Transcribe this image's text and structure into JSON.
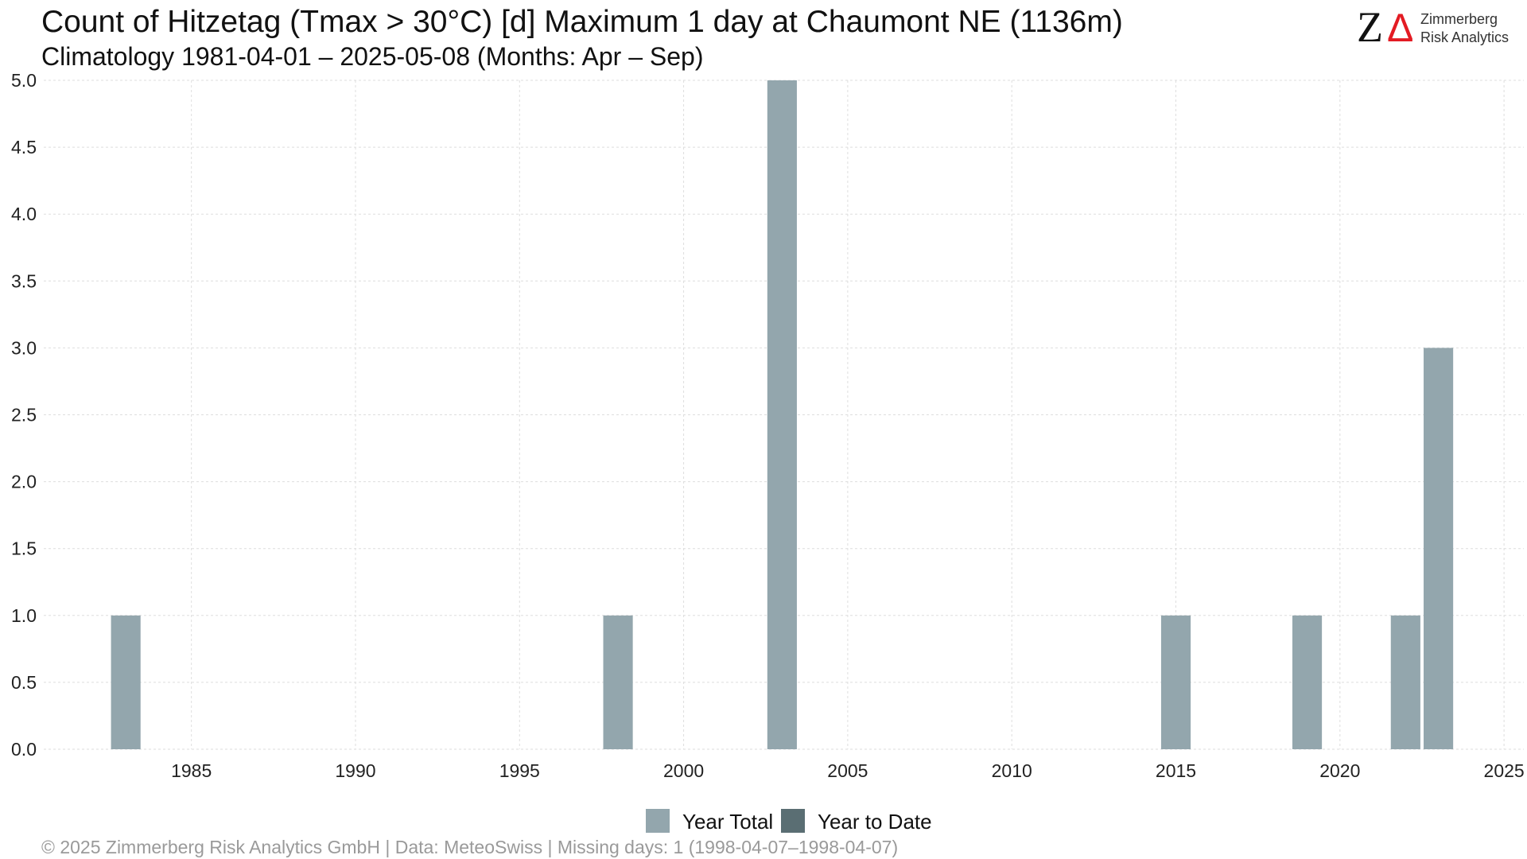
{
  "header": {
    "title": "Count of Hitzetag (Tmax > 30°C) [d] Maximum 1 day at Chaumont  NE (1136m)",
    "subtitle": "Climatology 1981-04-01 – 2025-05-08 (Months: Apr – Sep)"
  },
  "logo": {
    "mark_left": "Z",
    "mark_right": "Δ",
    "line1": "Zimmerberg",
    "line2": "Risk Analytics",
    "colors": {
      "mark_left": "#111111",
      "mark_right": "#e31b23"
    }
  },
  "footer": {
    "text": "©  2025 Zimmerberg Risk Analytics GmbH | Data: MeteoSwiss | Missing days: 1 (1998-04-07–1998-04-07)"
  },
  "chart_data": {
    "type": "bar",
    "title": "Count of Hitzetag (Tmax > 30°C) [d] Maximum 1 day at Chaumont  NE (1136m)",
    "subtitle": "Climatology 1981-04-01 – 2025-05-08 (Months: Apr – Sep)",
    "xlabel": "",
    "ylabel": "",
    "xlim": [
      1980.5,
      2025.7
    ],
    "ylim": [
      0,
      5
    ],
    "x_ticks": [
      1985,
      1990,
      1995,
      2000,
      2005,
      2010,
      2015,
      2020,
      2025
    ],
    "y_ticks": [
      "0.0",
      "0.5",
      "1.0",
      "1.5",
      "2.0",
      "2.5",
      "3.0",
      "3.5",
      "4.0",
      "4.5",
      "5.0"
    ],
    "grid": true,
    "legend_position": "bottom",
    "series": [
      {
        "name": "Year Total",
        "color": "#93a6ad",
        "points": [
          {
            "x": 1983,
            "y": 1
          },
          {
            "x": 1998,
            "y": 1
          },
          {
            "x": 2003,
            "y": 5
          },
          {
            "x": 2015,
            "y": 1
          },
          {
            "x": 2019,
            "y": 1
          },
          {
            "x": 2022,
            "y": 1
          },
          {
            "x": 2023,
            "y": 3
          }
        ]
      },
      {
        "name": "Year to Date",
        "color": "#5a6e73",
        "points": []
      }
    ]
  }
}
